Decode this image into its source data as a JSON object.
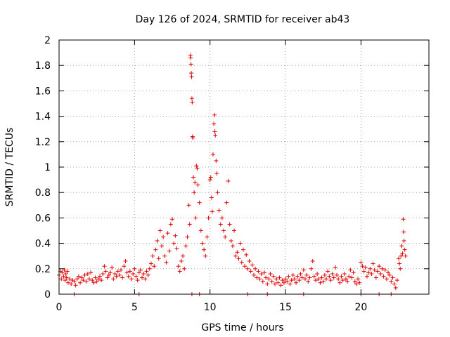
{
  "chart_data": {
    "type": "scatter",
    "title": "Day 126 of 2024, SRMTID for receiver ab43",
    "xlabel": "GPS time / hours",
    "ylabel": "SRMTID / TECUs",
    "xlim": [
      0,
      24.5
    ],
    "ylim": [
      0,
      2
    ],
    "xticks": [
      0,
      5,
      10,
      15,
      20
    ],
    "xtick_labels": [
      "0",
      "5",
      "10",
      "15",
      "20"
    ],
    "yticks": [
      0,
      0.2,
      0.4,
      0.6,
      0.8,
      1,
      1.2,
      1.4,
      1.6,
      1.8,
      2
    ],
    "ytick_labels": [
      "0",
      "0.2",
      "0.4",
      "0.6",
      "0.8",
      "1",
      "1.2",
      "1.4",
      "1.6",
      "1.8",
      "2"
    ],
    "grid": true,
    "marker": "+",
    "marker_color": "#e00000",
    "series": [
      {
        "name": "SRMTID",
        "points": [
          [
            0.0,
            0.15
          ],
          [
            0.1,
            0.18
          ],
          [
            0.15,
            0.12
          ],
          [
            0.2,
            0.17
          ],
          [
            0.3,
            0.14
          ],
          [
            0.35,
            0.19
          ],
          [
            0.4,
            0.11
          ],
          [
            0.45,
            0.16
          ],
          [
            0.5,
            0.13
          ],
          [
            0.55,
            0.18
          ],
          [
            0.6,
            0.09
          ],
          [
            0.7,
            0.12
          ],
          [
            0.8,
            0.08
          ],
          [
            0.9,
            0.11
          ],
          [
            1.0,
            0.1
          ],
          [
            1.1,
            0.07
          ],
          [
            1.2,
            0.12
          ],
          [
            1.3,
            0.14
          ],
          [
            1.4,
            0.09
          ],
          [
            1.5,
            0.13
          ],
          [
            1.6,
            0.11
          ],
          [
            1.7,
            0.15
          ],
          [
            1.8,
            0.1
          ],
          [
            1.9,
            0.16
          ],
          [
            2.0,
            0.12
          ],
          [
            2.1,
            0.17
          ],
          [
            2.2,
            0.11
          ],
          [
            2.3,
            0.09
          ],
          [
            2.4,
            0.13
          ],
          [
            2.5,
            0.1
          ],
          [
            2.6,
            0.12
          ],
          [
            2.7,
            0.14
          ],
          [
            2.8,
            0.11
          ],
          [
            2.9,
            0.16
          ],
          [
            3.0,
            0.22
          ],
          [
            3.1,
            0.18
          ],
          [
            3.2,
            0.13
          ],
          [
            3.3,
            0.15
          ],
          [
            3.4,
            0.17
          ],
          [
            3.5,
            0.21
          ],
          [
            3.6,
            0.12
          ],
          [
            3.7,
            0.16
          ],
          [
            3.8,
            0.14
          ],
          [
            3.9,
            0.18
          ],
          [
            4.0,
            0.15
          ],
          [
            4.1,
            0.19
          ],
          [
            4.2,
            0.13
          ],
          [
            4.3,
            0.22
          ],
          [
            4.4,
            0.26
          ],
          [
            4.5,
            0.17
          ],
          [
            4.6,
            0.14
          ],
          [
            4.7,
            0.18
          ],
          [
            4.8,
            0.12
          ],
          [
            4.9,
            0.16
          ],
          [
            5.0,
            0.2
          ],
          [
            5.1,
            0.14
          ],
          [
            5.2,
            0.11
          ],
          [
            5.3,
            0.17
          ],
          [
            5.4,
            0.19
          ],
          [
            5.5,
            0.13
          ],
          [
            5.6,
            0.16
          ],
          [
            5.7,
            0.12
          ],
          [
            5.8,
            0.18
          ],
          [
            5.9,
            0.15
          ],
          [
            6.0,
            0.2
          ],
          [
            6.1,
            0.24
          ],
          [
            6.2,
            0.3
          ],
          [
            6.3,
            0.22
          ],
          [
            6.4,
            0.35
          ],
          [
            6.5,
            0.42
          ],
          [
            6.6,
            0.28
          ],
          [
            6.7,
            0.5
          ],
          [
            6.8,
            0.38
          ],
          [
            6.9,
            0.45
          ],
          [
            7.0,
            0.3
          ],
          [
            7.1,
            0.25
          ],
          [
            7.2,
            0.48
          ],
          [
            7.3,
            0.34
          ],
          [
            7.4,
            0.55
          ],
          [
            7.5,
            0.59
          ],
          [
            7.6,
            0.4
          ],
          [
            7.7,
            0.46
          ],
          [
            7.8,
            0.36
          ],
          [
            7.9,
            0.22
          ],
          [
            8.0,
            0.18
          ],
          [
            8.1,
            0.26
          ],
          [
            8.2,
            0.3
          ],
          [
            8.3,
            0.2
          ],
          [
            8.4,
            0.38
          ],
          [
            8.5,
            0.45
          ],
          [
            8.6,
            0.7
          ],
          [
            8.65,
            0.55
          ],
          [
            8.7,
            1.88
          ],
          [
            8.72,
            1.86
          ],
          [
            8.74,
            1.81
          ],
          [
            8.76,
            1.74
          ],
          [
            8.78,
            1.71
          ],
          [
            8.8,
            1.54
          ],
          [
            8.82,
            1.51
          ],
          [
            8.84,
            1.24
          ],
          [
            8.86,
            1.23
          ],
          [
            8.9,
            0.92
          ],
          [
            8.95,
            0.8
          ],
          [
            9.0,
            0.88
          ],
          [
            9.05,
            0.6
          ],
          [
            9.1,
            1.01
          ],
          [
            9.15,
            0.99
          ],
          [
            9.2,
            0.86
          ],
          [
            9.3,
            0.72
          ],
          [
            9.4,
            0.5
          ],
          [
            9.5,
            0.4
          ],
          [
            9.6,
            0.35
          ],
          [
            9.7,
            0.3
          ],
          [
            9.8,
            0.45
          ],
          [
            9.9,
            0.6
          ],
          [
            10.0,
            0.9
          ],
          [
            10.05,
            0.92
          ],
          [
            10.1,
            0.76
          ],
          [
            10.15,
            0.65
          ],
          [
            10.2,
            1.1
          ],
          [
            10.25,
            1.34
          ],
          [
            10.3,
            1.41
          ],
          [
            10.32,
            1.28
          ],
          [
            10.35,
            1.25
          ],
          [
            10.4,
            1.05
          ],
          [
            10.45,
            0.95
          ],
          [
            10.5,
            0.8
          ],
          [
            10.6,
            0.66
          ],
          [
            10.7,
            0.55
          ],
          [
            10.8,
            0.6
          ],
          [
            10.9,
            0.5
          ],
          [
            11.0,
            0.45
          ],
          [
            11.1,
            0.72
          ],
          [
            11.2,
            0.89
          ],
          [
            11.3,
            0.55
          ],
          [
            11.4,
            0.42
          ],
          [
            11.5,
            0.38
          ],
          [
            11.6,
            0.5
          ],
          [
            11.7,
            0.3
          ],
          [
            11.8,
            0.33
          ],
          [
            11.9,
            0.28
          ],
          [
            12.0,
            0.4
          ],
          [
            12.1,
            0.25
          ],
          [
            12.2,
            0.35
          ],
          [
            12.3,
            0.22
          ],
          [
            12.4,
            0.31
          ],
          [
            12.5,
            0.2
          ],
          [
            12.6,
            0.26
          ],
          [
            12.7,
            0.18
          ],
          [
            12.8,
            0.23
          ],
          [
            12.9,
            0.15
          ],
          [
            13.0,
            0.2
          ],
          [
            13.1,
            0.13
          ],
          [
            13.2,
            0.18
          ],
          [
            13.3,
            0.12
          ],
          [
            13.4,
            0.16
          ],
          [
            13.5,
            0.1
          ],
          [
            13.6,
            0.17
          ],
          [
            13.7,
            0.13
          ],
          [
            13.8,
            0.08
          ],
          [
            13.9,
            0.12
          ],
          [
            14.0,
            0.16
          ],
          [
            14.1,
            0.1
          ],
          [
            14.2,
            0.14
          ],
          [
            14.3,
            0.08
          ],
          [
            14.4,
            0.12
          ],
          [
            14.5,
            0.09
          ],
          [
            14.6,
            0.13
          ],
          [
            14.7,
            0.07
          ],
          [
            14.8,
            0.11
          ],
          [
            14.9,
            0.09
          ],
          [
            15.0,
            0.12
          ],
          [
            15.1,
            0.1
          ],
          [
            15.2,
            0.14
          ],
          [
            15.3,
            0.08
          ],
          [
            15.4,
            0.11
          ],
          [
            15.5,
            0.15
          ],
          [
            15.6,
            0.12
          ],
          [
            15.7,
            0.09
          ],
          [
            15.8,
            0.14
          ],
          [
            15.9,
            0.11
          ],
          [
            16.0,
            0.16
          ],
          [
            16.1,
            0.13
          ],
          [
            16.2,
            0.19
          ],
          [
            16.3,
            0.12
          ],
          [
            16.4,
            0.15
          ],
          [
            16.5,
            0.1
          ],
          [
            16.6,
            0.13
          ],
          [
            16.7,
            0.2
          ],
          [
            16.8,
            0.26
          ],
          [
            16.9,
            0.14
          ],
          [
            17.0,
            0.11
          ],
          [
            17.1,
            0.16
          ],
          [
            17.2,
            0.12
          ],
          [
            17.3,
            0.09
          ],
          [
            17.4,
            0.13
          ],
          [
            17.5,
            0.1
          ],
          [
            17.6,
            0.15
          ],
          [
            17.7,
            0.12
          ],
          [
            17.8,
            0.18
          ],
          [
            17.9,
            0.14
          ],
          [
            18.0,
            0.11
          ],
          [
            18.1,
            0.16
          ],
          [
            18.2,
            0.13
          ],
          [
            18.3,
            0.21
          ],
          [
            18.4,
            0.15
          ],
          [
            18.5,
            0.12
          ],
          [
            18.6,
            0.09
          ],
          [
            18.7,
            0.14
          ],
          [
            18.8,
            0.11
          ],
          [
            18.9,
            0.16
          ],
          [
            19.0,
            0.12
          ],
          [
            19.1,
            0.1
          ],
          [
            19.2,
            0.14
          ],
          [
            19.3,
            0.19
          ],
          [
            19.4,
            0.13
          ],
          [
            19.5,
            0.17
          ],
          [
            19.6,
            0.1
          ],
          [
            19.7,
            0.08
          ],
          [
            19.8,
            0.12
          ],
          [
            19.9,
            0.09
          ],
          [
            20.0,
            0.25
          ],
          [
            20.1,
            0.22
          ],
          [
            20.2,
            0.18
          ],
          [
            20.3,
            0.21
          ],
          [
            20.4,
            0.14
          ],
          [
            20.5,
            0.17
          ],
          [
            20.6,
            0.2
          ],
          [
            20.7,
            0.16
          ],
          [
            20.8,
            0.24
          ],
          [
            20.9,
            0.19
          ],
          [
            21.0,
            0.13
          ],
          [
            21.1,
            0.18
          ],
          [
            21.2,
            0.22
          ],
          [
            21.3,
            0.16
          ],
          [
            21.4,
            0.2
          ],
          [
            21.5,
            0.14
          ],
          [
            21.6,
            0.19
          ],
          [
            21.7,
            0.12
          ],
          [
            21.8,
            0.17
          ],
          [
            21.9,
            0.15
          ],
          [
            22.0,
            0.1
          ],
          [
            22.1,
            0.13
          ],
          [
            22.2,
            0.08
          ],
          [
            22.3,
            0.05
          ],
          [
            22.4,
            0.11
          ],
          [
            22.5,
            0.28
          ],
          [
            22.55,
            0.24
          ],
          [
            22.6,
            0.2
          ],
          [
            22.65,
            0.3
          ],
          [
            22.7,
            0.38
          ],
          [
            22.75,
            0.32
          ],
          [
            22.8,
            0.59
          ],
          [
            22.82,
            0.49
          ],
          [
            22.85,
            0.42
          ],
          [
            22.9,
            0.35
          ],
          [
            22.95,
            0.3
          ],
          [
            1.0,
            0.0
          ],
          [
            5.3,
            0.0
          ],
          [
            8.8,
            0.0
          ],
          [
            9.3,
            0.0
          ],
          [
            12.5,
            0.0
          ],
          [
            13.8,
            0.0
          ],
          [
            16.2,
            0.0
          ],
          [
            20.0,
            0.0
          ],
          [
            21.2,
            0.0
          ],
          [
            22.0,
            0.0
          ]
        ]
      }
    ]
  }
}
